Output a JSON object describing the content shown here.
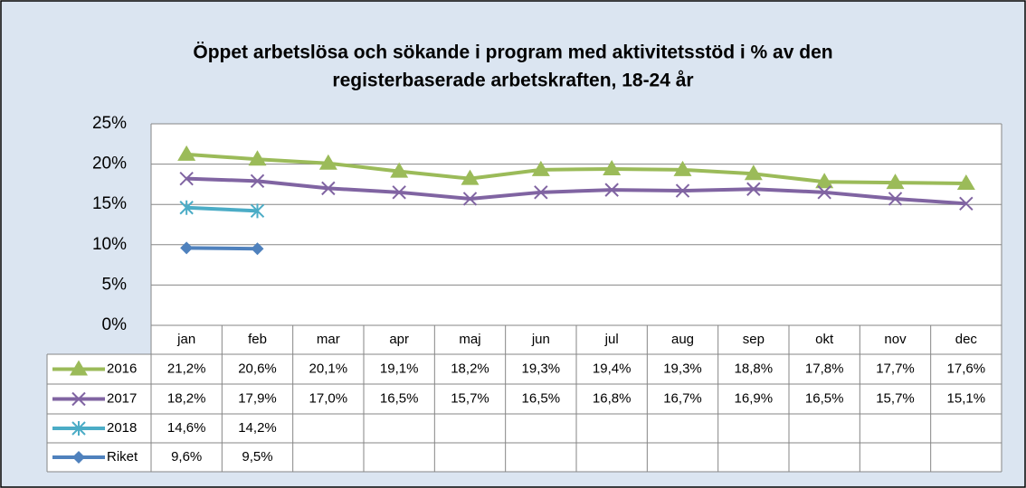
{
  "chart_data": {
    "type": "line",
    "title": [
      "Öppet arbetslösa och sökande i program med aktivitetsstöd i % av den",
      "registerbaserade arbetskraften, 18-24 år"
    ],
    "categories": [
      "jan",
      "feb",
      "mar",
      "apr",
      "maj",
      "jun",
      "jul",
      "aug",
      "sep",
      "okt",
      "nov",
      "dec"
    ],
    "ylim": [
      0,
      25
    ],
    "yticks": [
      {
        "value": 0,
        "label": "0%"
      },
      {
        "value": 5,
        "label": "5%"
      },
      {
        "value": 10,
        "label": "10%"
      },
      {
        "value": 15,
        "label": "15%"
      },
      {
        "value": 20,
        "label": "20%"
      },
      {
        "value": 25,
        "label": "25%"
      }
    ],
    "grid": true,
    "series": [
      {
        "name": "2016",
        "color": "#9bbb59",
        "marker": "triangle",
        "values": [
          21.2,
          20.6,
          20.1,
          19.1,
          18.2,
          19.3,
          19.4,
          19.3,
          18.8,
          17.8,
          17.7,
          17.6
        ],
        "value_labels": [
          "21,2%",
          "20,6%",
          "20,1%",
          "19,1%",
          "18,2%",
          "19,3%",
          "19,4%",
          "19,3%",
          "18,8%",
          "17,8%",
          "17,7%",
          "17,6%"
        ]
      },
      {
        "name": "2017",
        "color": "#8064a2",
        "marker": "x",
        "values": [
          18.2,
          17.9,
          17.0,
          16.5,
          15.7,
          16.5,
          16.8,
          16.7,
          16.9,
          16.5,
          15.7,
          15.1
        ],
        "value_labels": [
          "18,2%",
          "17,9%",
          "17,0%",
          "16,5%",
          "15,7%",
          "16,5%",
          "16,8%",
          "16,7%",
          "16,9%",
          "16,5%",
          "15,7%",
          "15,1%"
        ]
      },
      {
        "name": "2018",
        "color": "#4bacc6",
        "marker": "star",
        "values": [
          14.6,
          14.2,
          null,
          null,
          null,
          null,
          null,
          null,
          null,
          null,
          null,
          null
        ],
        "value_labels": [
          "14,6%",
          "14,2%",
          null,
          null,
          null,
          null,
          null,
          null,
          null,
          null,
          null,
          null
        ]
      },
      {
        "name": "Riket",
        "color": "#4f81bd",
        "marker": "diamond",
        "values": [
          9.6,
          9.5,
          null,
          null,
          null,
          null,
          null,
          null,
          null,
          null,
          null,
          null
        ],
        "value_labels": [
          "9,6%",
          "9,5%",
          null,
          null,
          null,
          null,
          null,
          null,
          null,
          null,
          null,
          null
        ]
      }
    ]
  }
}
